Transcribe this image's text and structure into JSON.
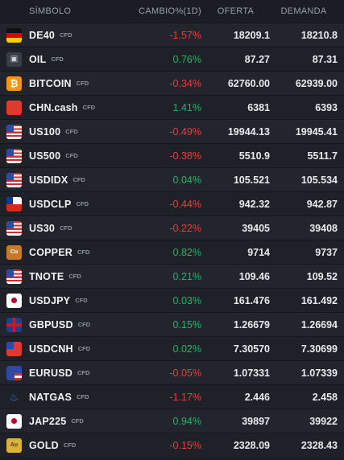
{
  "header": {
    "symbol": "SÍMBOLO",
    "change": "CAMBIO%(1D)",
    "bid": "OFERTA",
    "ask": "DEMANDA"
  },
  "rows": [
    {
      "symbol": "DE40",
      "tag": "CFD",
      "change": "-1.57%",
      "bid": "18209.1",
      "ask": "18210.8",
      "icon": "germany-flag-icon"
    },
    {
      "symbol": "OIL",
      "tag": "CFD",
      "change": "0.76%",
      "bid": "87.27",
      "ask": "87.31",
      "icon": "oil-barrel-icon"
    },
    {
      "symbol": "BITCOIN",
      "tag": "CFD",
      "change": "-0.34%",
      "bid": "62760.00",
      "ask": "62939.00",
      "icon": "bitcoin-icon"
    },
    {
      "symbol": "CHN.cash",
      "tag": "CFD",
      "change": "1.41%",
      "bid": "6381",
      "ask": "6393",
      "icon": "china-flag-icon"
    },
    {
      "symbol": "US100",
      "tag": "CFD",
      "change": "-0.49%",
      "bid": "19944.13",
      "ask": "19945.41",
      "icon": "usa-flag-icon"
    },
    {
      "symbol": "US500",
      "tag": "CFD",
      "change": "-0.38%",
      "bid": "5510.9",
      "ask": "5511.7",
      "icon": "usa-flag-icon"
    },
    {
      "symbol": "USDIDX",
      "tag": "CFD",
      "change": "0.04%",
      "bid": "105.521",
      "ask": "105.534",
      "icon": "usa-flag-icon"
    },
    {
      "symbol": "USDCLP",
      "tag": "CFD",
      "change": "-0.44%",
      "bid": "942.32",
      "ask": "942.87",
      "icon": "usd-clp-flags-icon"
    },
    {
      "symbol": "US30",
      "tag": "CFD",
      "change": "-0.22%",
      "bid": "39405",
      "ask": "39408",
      "icon": "usa-flag-icon"
    },
    {
      "symbol": "COPPER",
      "tag": "CFD",
      "change": "0.82%",
      "bid": "9714",
      "ask": "9737",
      "icon": "copper-icon"
    },
    {
      "symbol": "TNOTE",
      "tag": "CFD",
      "change": "0.21%",
      "bid": "109.46",
      "ask": "109.52",
      "icon": "usa-flag-icon"
    },
    {
      "symbol": "USDJPY",
      "tag": "CFD",
      "change": "0.03%",
      "bid": "161.476",
      "ask": "161.492",
      "icon": "usd-jpy-flags-icon"
    },
    {
      "symbol": "GBPUSD",
      "tag": "CFD",
      "change": "0.15%",
      "bid": "1.26679",
      "ask": "1.26694",
      "icon": "gbp-usd-flags-icon"
    },
    {
      "symbol": "USDCNH",
      "tag": "CFD",
      "change": "0.02%",
      "bid": "7.30570",
      "ask": "7.30699",
      "icon": "usd-cnh-flags-icon"
    },
    {
      "symbol": "EURUSD",
      "tag": "CFD",
      "change": "-0.05%",
      "bid": "1.07331",
      "ask": "1.07339",
      "icon": "eur-usd-flags-icon"
    },
    {
      "symbol": "NATGAS",
      "tag": "CFD",
      "change": "-1.17%",
      "bid": "2.446",
      "ask": "2.458",
      "icon": "gas-flame-icon"
    },
    {
      "symbol": "JAP225",
      "tag": "CFD",
      "change": "0.94%",
      "bid": "39897",
      "ask": "39922",
      "icon": "japan-flag-icon"
    },
    {
      "symbol": "GOLD",
      "tag": "CFD",
      "change": "-0.15%",
      "bid": "2328.09",
      "ask": "2328.43",
      "icon": "gold-icon"
    }
  ],
  "colors": {
    "negative": "#ee3b3b",
    "positive": "#22b36a",
    "background": "#1a1d24"
  }
}
